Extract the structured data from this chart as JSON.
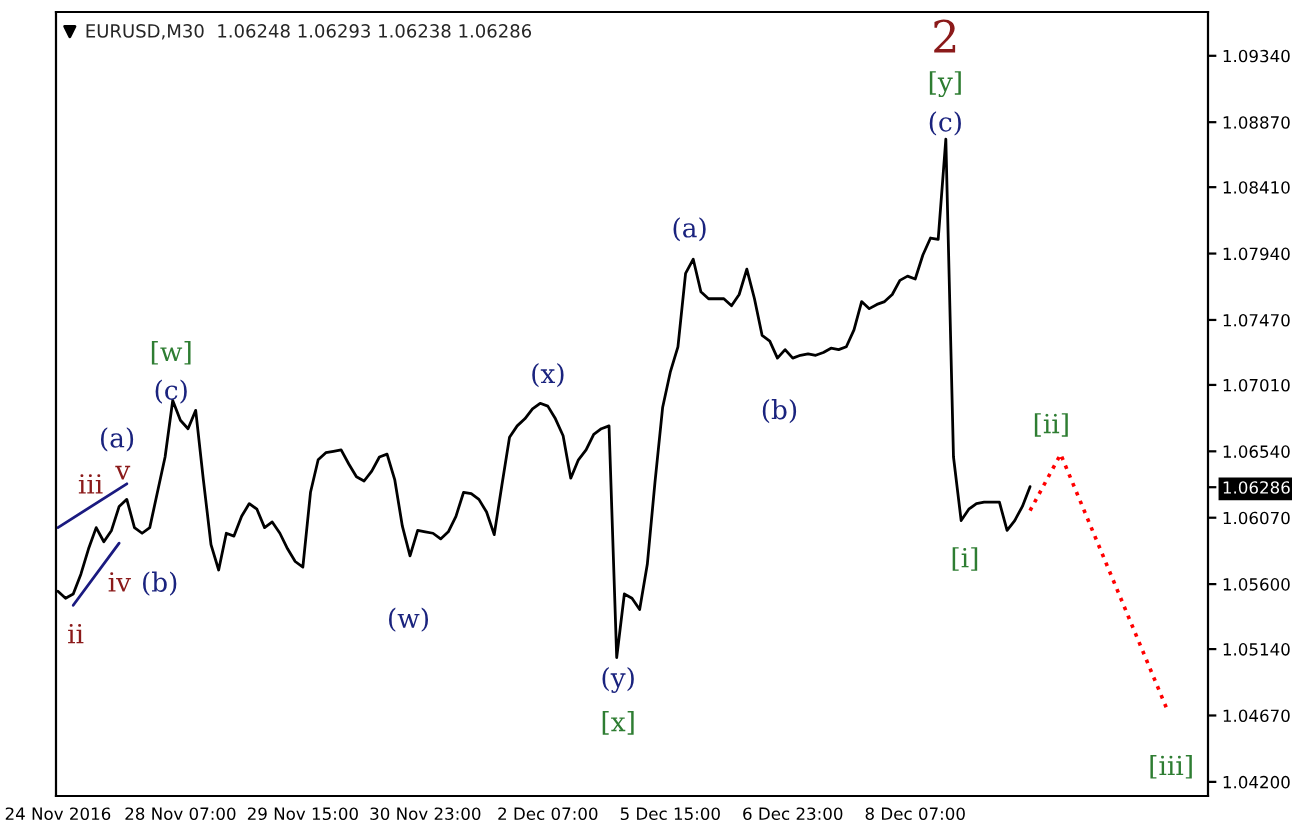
{
  "chart_data": {
    "type": "line",
    "title": "EURUSD,M30  1.06248 1.06293 1.06238 1.06286",
    "categories": [
      "24 Nov 2016",
      null,
      null,
      null,
      null,
      null,
      null,
      null,
      null,
      null,
      null,
      null,
      null,
      null,
      null,
      null,
      "28 Nov 07:00",
      null,
      null,
      null,
      null,
      null,
      null,
      null,
      null,
      null,
      null,
      null,
      null,
      null,
      null,
      null,
      "29 Nov 15:00",
      null,
      null,
      null,
      null,
      null,
      null,
      null,
      null,
      null,
      null,
      null,
      null,
      null,
      null,
      null,
      "30 Nov 23:00",
      null,
      null,
      null,
      null,
      null,
      null,
      null,
      null,
      null,
      null,
      null,
      null,
      null,
      null,
      null,
      "2 Dec 07:00",
      null,
      null,
      null,
      null,
      null,
      null,
      null,
      null,
      null,
      null,
      null,
      null,
      null,
      null,
      null,
      "5 Dec 15:00",
      null,
      null,
      null,
      null,
      null,
      null,
      null,
      null,
      null,
      null,
      null,
      null,
      null,
      null,
      null,
      "6 Dec 23:00",
      null,
      null,
      null,
      null,
      null,
      null,
      null,
      null,
      null,
      null,
      null,
      null,
      null,
      null,
      null,
      "8 Dec 07:00",
      null,
      null,
      null,
      null,
      null,
      null,
      null,
      null,
      null,
      null,
      null,
      null,
      null,
      null,
      null,
      null,
      null,
      null,
      null,
      null,
      null,
      null,
      null,
      null,
      null,
      null,
      null,
      null,
      null,
      null,
      null,
      null,
      null,
      null,
      null,
      null,
      null,
      null
    ],
    "series": [
      {
        "color": "#000000",
        "line_style": "solid",
        "values": [
          1.0555,
          1.055,
          1.0553,
          1.0567,
          1.0585,
          1.06,
          1.059,
          1.0598,
          1.0615,
          1.062,
          1.06,
          1.0596,
          1.06,
          1.0625,
          1.065,
          1.069,
          1.0676,
          1.067,
          1.0683,
          1.0634,
          1.0588,
          1.057,
          1.0596,
          1.0594,
          1.0608,
          1.0617,
          1.0613,
          1.06,
          1.0604,
          1.0596,
          1.0585,
          1.0576,
          1.0572,
          1.0625,
          1.0648,
          1.0653,
          1.0654,
          1.0655,
          1.0645,
          1.0636,
          1.0633,
          1.064,
          1.065,
          1.0652,
          1.0634,
          1.0601,
          1.058,
          1.0598,
          1.0597,
          1.0596,
          1.0592,
          1.0597,
          1.0608,
          1.0625,
          1.0624,
          1.062,
          1.0611,
          1.0595,
          1.063,
          1.0664,
          1.0672,
          1.0677,
          1.0684,
          1.0688,
          1.0686,
          1.0677,
          1.0665,
          1.0635,
          1.0648,
          1.0655,
          1.0666,
          1.067,
          1.0672,
          1.0508,
          1.0553,
          1.055,
          1.0542,
          1.0574,
          1.0632,
          1.0685,
          1.071,
          1.0728,
          1.078,
          1.079,
          1.0767,
          1.0762,
          1.0762,
          1.0762,
          1.0757,
          1.0765,
          1.0783,
          1.0762,
          1.0736,
          1.0732,
          1.072,
          1.0726,
          1.072,
          1.0722,
          1.0723,
          1.0722,
          1.0724,
          1.0727,
          1.0726,
          1.0728,
          1.074,
          1.076,
          1.0755,
          1.0758,
          1.076,
          1.0765,
          1.0775,
          1.0778,
          1.0776,
          1.0793,
          1.0805,
          1.0804,
          1.0875,
          1.065,
          1.0605,
          1.0613,
          1.0617,
          1.0618,
          1.0618,
          1.0618,
          1.0598,
          1.0605,
          1.0615,
          1.0629,
          null,
          null,
          null,
          null,
          null,
          null,
          null,
          null,
          null,
          null,
          null,
          null,
          null,
          null,
          null,
          null,
          null,
          null,
          null,
          null,
          null,
          null,
          null
        ]
      },
      {
        "color": "#ff0000",
        "line_style": "dotted",
        "values": [
          null,
          null,
          null,
          null,
          null,
          null,
          null,
          null,
          null,
          null,
          null,
          null,
          null,
          null,
          null,
          null,
          null,
          null,
          null,
          null,
          null,
          null,
          null,
          null,
          null,
          null,
          null,
          null,
          null,
          null,
          null,
          null,
          null,
          null,
          null,
          null,
          null,
          null,
          null,
          null,
          null,
          null,
          null,
          null,
          null,
          null,
          null,
          null,
          null,
          null,
          null,
          null,
          null,
          null,
          null,
          null,
          null,
          null,
          null,
          null,
          null,
          null,
          null,
          null,
          null,
          null,
          null,
          null,
          null,
          null,
          null,
          null,
          null,
          null,
          null,
          null,
          null,
          null,
          null,
          null,
          null,
          null,
          null,
          null,
          null,
          null,
          null,
          null,
          null,
          null,
          null,
          null,
          null,
          null,
          null,
          null,
          null,
          null,
          null,
          null,
          null,
          null,
          null,
          null,
          null,
          null,
          null,
          null,
          null,
          null,
          null,
          null,
          null,
          null,
          null,
          null,
          null,
          null,
          null,
          null,
          null,
          null,
          null,
          null,
          null,
          null,
          null,
          1.0612,
          null,
          null,
          null,
          1.0652,
          null,
          null,
          null,
          null,
          null,
          null,
          null,
          null,
          null,
          null,
          null,
          null,
          null,
          1.047,
          null,
          null,
          null,
          null,
          null
        ]
      },
      {
        "color": "#1a1a80",
        "line_style": "solid",
        "values": [
          1.06,
          null,
          null,
          null,
          null,
          null,
          null,
          null,
          null,
          1.0631,
          null,
          null,
          null,
          null,
          null,
          null,
          null,
          null,
          null,
          null,
          null,
          null,
          null,
          null,
          null,
          null,
          null,
          null,
          null,
          null,
          null,
          null,
          null,
          null,
          null,
          null,
          null,
          null,
          null,
          null,
          null,
          null,
          null,
          null,
          null,
          null,
          null,
          null,
          null,
          null,
          null,
          null,
          null,
          null,
          null,
          null,
          null,
          null,
          null,
          null,
          null,
          null,
          null,
          null,
          null,
          null,
          null,
          null,
          null,
          null,
          null,
          null,
          null,
          null,
          null,
          null,
          null,
          null,
          null,
          null,
          null,
          null,
          null,
          null,
          null,
          null,
          null,
          null,
          null,
          null,
          null,
          null,
          null,
          null,
          null,
          null,
          null,
          null,
          null,
          null,
          null,
          null,
          null,
          null,
          null,
          null,
          null,
          null,
          null,
          null,
          null,
          null,
          null,
          null,
          null,
          null,
          null,
          null,
          null,
          null,
          null,
          null,
          null,
          null,
          null,
          null,
          null,
          null,
          null,
          null,
          null,
          null,
          null,
          null,
          null,
          null,
          null,
          null,
          null,
          null,
          null,
          null,
          null,
          null,
          null,
          null,
          null,
          null,
          null,
          null,
          null
        ]
      },
      {
        "color": "#1a1a80",
        "line_style": "solid",
        "values": [
          null,
          null,
          1.0545,
          null,
          null,
          null,
          null,
          null,
          1.0589,
          null,
          null,
          null,
          null,
          null,
          null,
          null,
          null,
          null,
          null,
          null,
          null,
          null,
          null,
          null,
          null,
          null,
          null,
          null,
          null,
          null,
          null,
          null,
          null,
          null,
          null,
          null,
          null,
          null,
          null,
          null,
          null,
          null,
          null,
          null,
          null,
          null,
          null,
          null,
          null,
          null,
          null,
          null,
          null,
          null,
          null,
          null,
          null,
          null,
          null,
          null,
          null,
          null,
          null,
          null,
          null,
          null,
          null,
          null,
          null,
          null,
          null,
          null,
          null,
          null,
          null,
          null,
          null,
          null,
          null,
          null,
          null,
          null,
          null,
          null,
          null,
          null,
          null,
          null,
          null,
          null,
          null,
          null,
          null,
          null,
          null,
          null,
          null,
          null,
          null,
          null,
          null,
          null,
          null,
          null,
          null,
          null,
          null,
          null,
          null,
          null,
          null,
          null,
          null,
          null,
          null,
          null,
          null,
          null,
          null,
          null,
          null,
          null,
          null,
          null,
          null,
          null,
          null,
          null,
          null,
          null,
          null,
          null,
          null,
          null,
          null,
          null,
          null,
          null,
          null,
          null,
          null,
          null,
          null,
          null,
          null,
          null,
          null,
          null,
          null,
          null,
          null
        ]
      }
    ],
    "ylim": [
      1.041,
      1.0965
    ],
    "yticks": [
      {
        "value": 1.042,
        "label": "1.04200"
      },
      {
        "value": 1.0467,
        "label": "1.04670"
      },
      {
        "value": 1.0514,
        "label": "1.05140"
      },
      {
        "value": 1.056,
        "label": "1.05600"
      },
      {
        "value": 1.0607,
        "label": "1.06070"
      },
      {
        "value": 1.0654,
        "label": "1.06540"
      },
      {
        "value": 1.0701,
        "label": "1.07010"
      },
      {
        "value": 1.0747,
        "label": "1.07470"
      },
      {
        "value": 1.0794,
        "label": "1.07940"
      },
      {
        "value": 1.0841,
        "label": "1.08410"
      },
      {
        "value": 1.0887,
        "label": "1.08870"
      },
      {
        "value": 1.0934,
        "label": "1.09340"
      },
      1.06286
    ],
    "grid": false,
    "marker": "none",
    "annotations": [
      "2",
      "[y]",
      "(c)",
      "(a)",
      "(b)",
      "[w]",
      "(c)",
      "(x)",
      "(a)",
      "v",
      "iii",
      "iv",
      "(b)",
      "ii",
      "(w)",
      "(y)",
      "[x]",
      "[i]",
      "[ii]",
      "[iii]"
    ]
  }
}
